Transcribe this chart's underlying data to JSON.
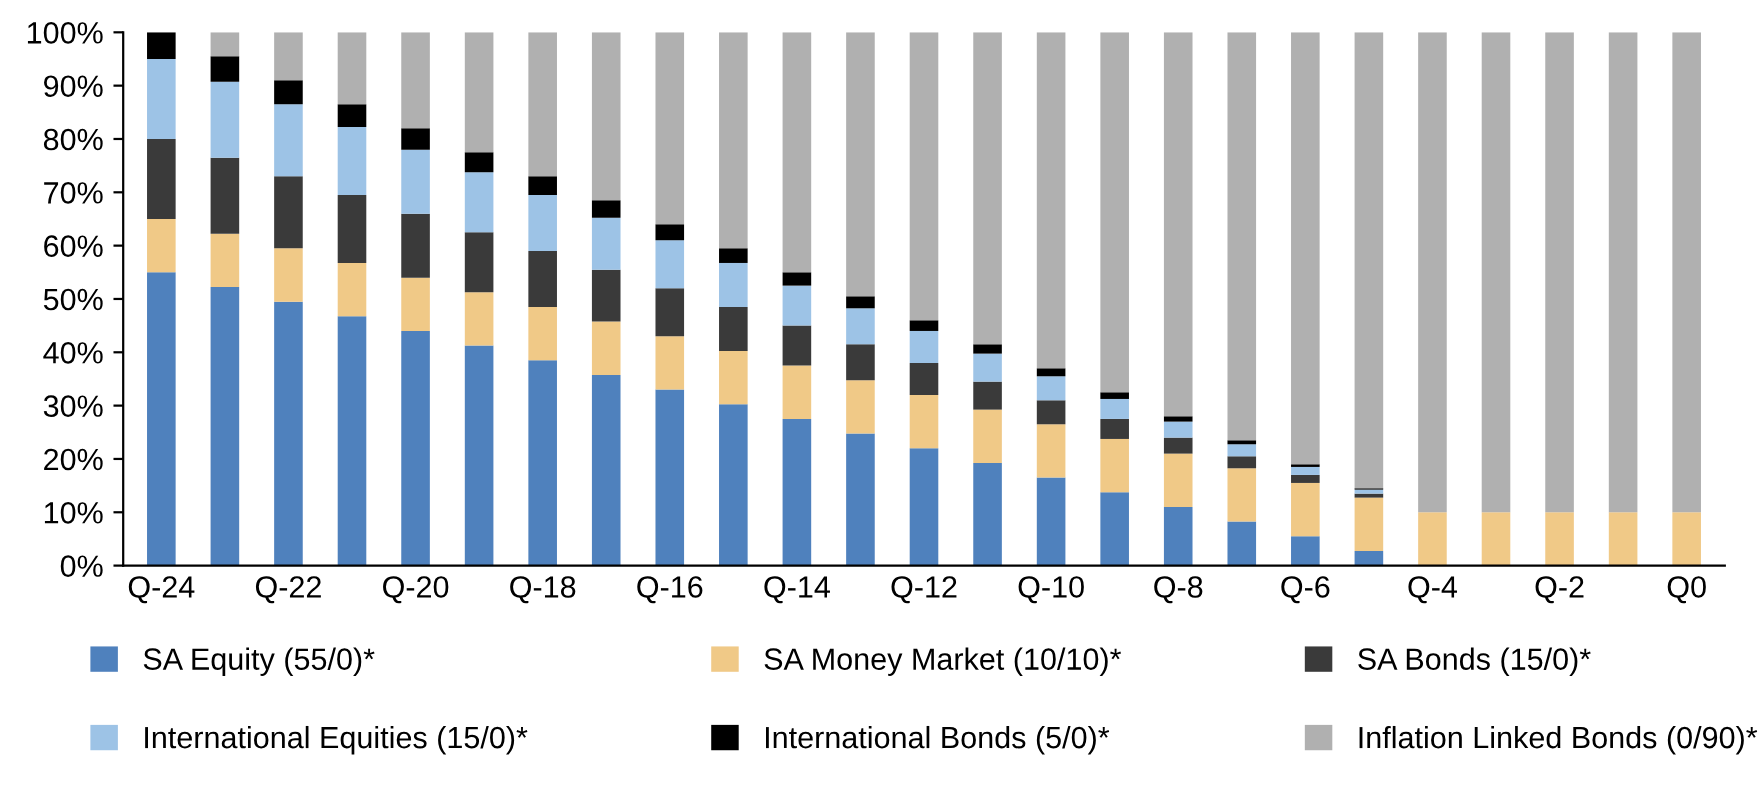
{
  "chart_data": {
    "type": "bar",
    "stacked": true,
    "legend": "bottom",
    "grid": false,
    "categories": [
      "Q-24",
      null,
      "Q-22",
      null,
      "Q-20",
      null,
      "Q-18",
      null,
      "Q-16",
      null,
      "Q-14",
      null,
      "Q-12",
      null,
      "Q-10",
      null,
      "Q-8",
      null,
      "Q-6",
      null,
      "Q-4",
      null,
      "Q-2",
      null,
      "Q0"
    ],
    "ylim": [
      0,
      100
    ],
    "yticks": [
      {
        "value": 0,
        "label": "0%"
      },
      {
        "value": 10,
        "label": "10%"
      },
      {
        "value": 20,
        "label": "20%"
      },
      {
        "value": 30,
        "label": "30%"
      },
      {
        "value": 40,
        "label": "40%"
      },
      {
        "value": 50,
        "label": "50%"
      },
      {
        "value": 60,
        "label": "60%"
      },
      {
        "value": 70,
        "label": "70%"
      },
      {
        "value": 80,
        "label": "80%"
      },
      {
        "value": 90,
        "label": "90%"
      },
      {
        "value": 100,
        "label": "100%"
      }
    ],
    "series": [
      {
        "name": "SA Equity (55/0)*",
        "color": "#4f81bd",
        "values": [
          55,
          52.25,
          49.5,
          46.75,
          44,
          41.25,
          38.5,
          35.75,
          33,
          30.25,
          27.5,
          24.75,
          22,
          19.25,
          16.5,
          13.75,
          11,
          8.25,
          5.5,
          2.75,
          0,
          0,
          0,
          0,
          0
        ]
      },
      {
        "name": "SA Money Market (10/10)*",
        "color": "#f0c987",
        "values": [
          10,
          10,
          10,
          10,
          10,
          10,
          10,
          10,
          10,
          10,
          10,
          10,
          10,
          10,
          10,
          10,
          10,
          10,
          10,
          10,
          10,
          10,
          10,
          10,
          10
        ]
      },
      {
        "name": "SA Bonds (15/0)*",
        "color": "#3a3a3a",
        "values": [
          15,
          14.25,
          13.5,
          12.75,
          12,
          11.25,
          10.5,
          9.75,
          9,
          8.25,
          7.5,
          6.75,
          6,
          5.25,
          4.5,
          3.75,
          3,
          2.25,
          1.5,
          0.75,
          0,
          0,
          0,
          0,
          0
        ]
      },
      {
        "name": "International Equities (15/0)*",
        "color": "#9dc3e6",
        "values": [
          15,
          14.25,
          13.5,
          12.75,
          12,
          11.25,
          10.5,
          9.75,
          9,
          8.25,
          7.5,
          6.75,
          6,
          5.25,
          4.5,
          3.75,
          3,
          2.25,
          1.5,
          0.75,
          0,
          0,
          0,
          0,
          0
        ]
      },
      {
        "name": "International Bonds (5/0)*",
        "color": "#000000",
        "values": [
          5,
          4.75,
          4.5,
          4.25,
          4,
          3.75,
          3.5,
          3.25,
          3,
          2.75,
          2.5,
          2.25,
          2,
          1.75,
          1.5,
          1.25,
          1,
          0.75,
          0.5,
          0.25,
          0,
          0,
          0,
          0,
          0
        ]
      },
      {
        "name": "Inflation Linked Bonds (0/90)*",
        "color": "#b0b0b0",
        "values": [
          0,
          4.5,
          9,
          13.5,
          18,
          22.5,
          27,
          31.5,
          36,
          40.5,
          45,
          49.5,
          54,
          58.5,
          63,
          67.5,
          72,
          76.5,
          81,
          85.5,
          90,
          90,
          90,
          90,
          90
        ]
      }
    ]
  }
}
